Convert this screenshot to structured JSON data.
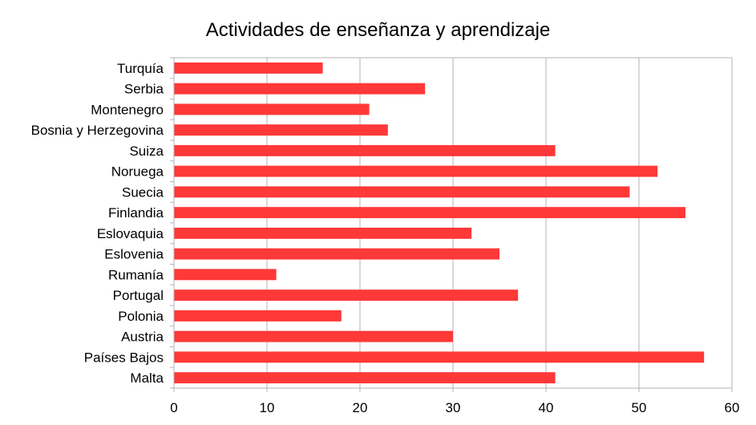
{
  "chart_data": {
    "type": "bar",
    "orientation": "horizontal",
    "title": "Actividades de enseñanza y aprendizaje",
    "xlabel": "",
    "ylabel": "",
    "categories": [
      "Turquía",
      "Serbia",
      "Montenegro",
      "Bosnia y Herzegovina",
      "Suiza",
      "Noruega",
      "Suecia",
      "Finlandia",
      "Eslovaquia",
      "Eslovenia",
      "Rumanía",
      "Portugal",
      "Polonia",
      "Austria",
      "Países Bajos",
      "Malta"
    ],
    "values": [
      16,
      27,
      21,
      23,
      41,
      52,
      49,
      55,
      32,
      35,
      11,
      37,
      18,
      30,
      57,
      41
    ],
    "xlim": [
      0,
      60
    ],
    "xticks": [
      0,
      10,
      20,
      30,
      40,
      50,
      60
    ],
    "grid": "vertical",
    "legend": "none",
    "bar_color": "#ff3838"
  }
}
